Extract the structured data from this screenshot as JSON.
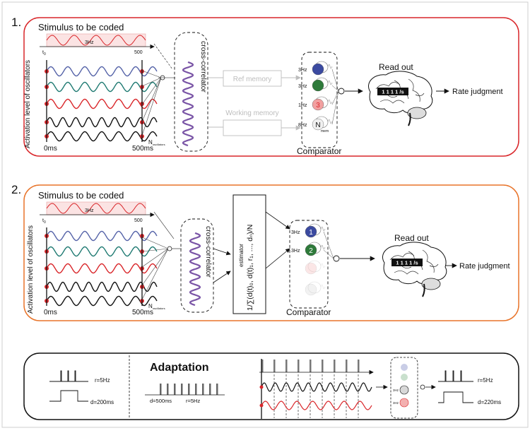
{
  "colors": {
    "panel1_border": "#d9262a",
    "panel2_border": "#e8742a",
    "panel3_border": "#111111",
    "wave_blue": "#5563a8",
    "wave_teal": "#1f7a72",
    "wave_red": "#d9262a",
    "wave_black": "#111111",
    "neuron_blue": "#3b4aa0",
    "neuron_green": "#2e7a3a",
    "neuron_red": "#f2a0a0",
    "faded": "#bdbdbd"
  },
  "panel1": {
    "number": "1.",
    "stimulus_title": "Stimulus to be coded",
    "stimulus_freq": "3Hz",
    "t0": "t",
    "t0_sub": "0",
    "t_end": "500",
    "ylabel": "Activation level of oscillators",
    "x_start": "0ms",
    "x_end": "500ms",
    "n_label": "N",
    "n_sub": "oscillators",
    "cross_correlator": "cross-correlator",
    "ref_memory": "Ref memory",
    "working_memory": "Working memory",
    "neurons": [
      {
        "label": "3Hz",
        "inner": ""
      },
      {
        "label": "3Hz",
        "inner": ""
      },
      {
        "label": "1Hz",
        "inner": "3"
      },
      {
        "label": "8Hz",
        "inner": "N",
        "sub": "mem"
      }
    ],
    "comparator": "Comparator",
    "read_out": "Read out",
    "display": "1 1 1 1 /s",
    "rate_judgment": "Rate judgment"
  },
  "panel2": {
    "number": "2.",
    "stimulus_title": "Stimulus to be coded",
    "stimulus_freq": "3Hz",
    "t0": "t",
    "t0_sub": "0",
    "t_end": "500",
    "ylabel": "Activation level of oscillators",
    "x_start": "0ms",
    "x_end": "500ms",
    "n_label": "N",
    "n_sub": "oscillators",
    "cross_correlator": "cross-correlator",
    "estimator_formula": "1/∑(d(t)₀, d(t)₁, r₁, ..., dₙ)/N",
    "estimator_label": "estimator",
    "neurons": [
      {
        "label": "3Hz",
        "inner": "1"
      },
      {
        "label": "3Hz",
        "inner": "2"
      }
    ],
    "comparator": "Comparator",
    "read_out": "Read out",
    "display": "1 1 1 1 /s",
    "rate_judgment": "Rate judgment"
  },
  "panel3": {
    "title": "Adaptation",
    "left_rate": "r=5Hz",
    "left_duration": "d=200ms",
    "mid_duration": "d=500ms",
    "mid_rate": "r=5Hz",
    "right_rate": "r=5Hz",
    "right_duration": "d=220ms",
    "mini_labels": [
      "3Hz",
      "3Hz"
    ]
  }
}
